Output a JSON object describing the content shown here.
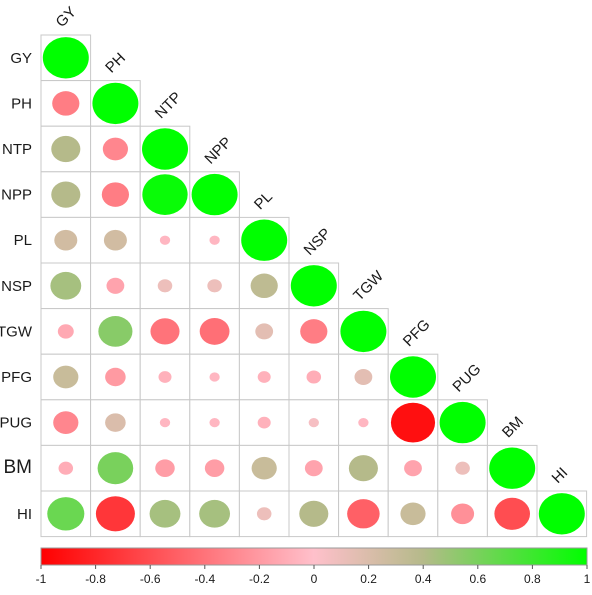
{
  "chart_data": {
    "type": "heatmap",
    "variables": [
      "GY",
      "PH",
      "NTP",
      "NPP",
      "PL",
      "NSP",
      "TGW",
      "PFG",
      "PUG",
      "BM",
      "HI"
    ],
    "layout": "lower-triangle",
    "matrix": [
      [
        1.0
      ],
      [
        -0.35,
        1.0
      ],
      [
        0.4,
        -0.3,
        1.0
      ],
      [
        0.4,
        -0.35,
        0.97,
        1.0
      ],
      [
        0.25,
        0.25,
        -0.05,
        -0.05,
        1.0
      ],
      [
        0.45,
        -0.15,
        0.1,
        0.1,
        0.35,
        1.0
      ],
      [
        -0.12,
        0.55,
        -0.4,
        -0.42,
        0.15,
        -0.35,
        1.0
      ],
      [
        0.3,
        -0.2,
        -0.08,
        -0.05,
        -0.08,
        -0.1,
        0.15,
        1.0
      ],
      [
        -0.3,
        0.2,
        -0.05,
        -0.05,
        -0.08,
        0.05,
        -0.05,
        -0.92,
        1.0
      ],
      [
        -0.1,
        0.6,
        -0.18,
        -0.18,
        0.3,
        -0.15,
        0.4,
        -0.15,
        0.1,
        1.0
      ],
      [
        0.65,
        -0.72,
        0.45,
        0.45,
        0.1,
        0.4,
        -0.5,
        0.3,
        -0.25,
        -0.6,
        1.0
      ]
    ],
    "colorbar": {
      "range": [
        -1,
        1
      ],
      "ticks": [
        "-1",
        "-0.8",
        "-0.6",
        "-0.4",
        "-0.2",
        "0",
        "0.2",
        "0.4",
        "0.6",
        "0.8",
        "1"
      ],
      "colors": {
        "negative": "#ff0000",
        "zero": "#ffc0cb",
        "mid_positive": "#b5ba8a",
        "positive": "#00ff00"
      }
    }
  }
}
